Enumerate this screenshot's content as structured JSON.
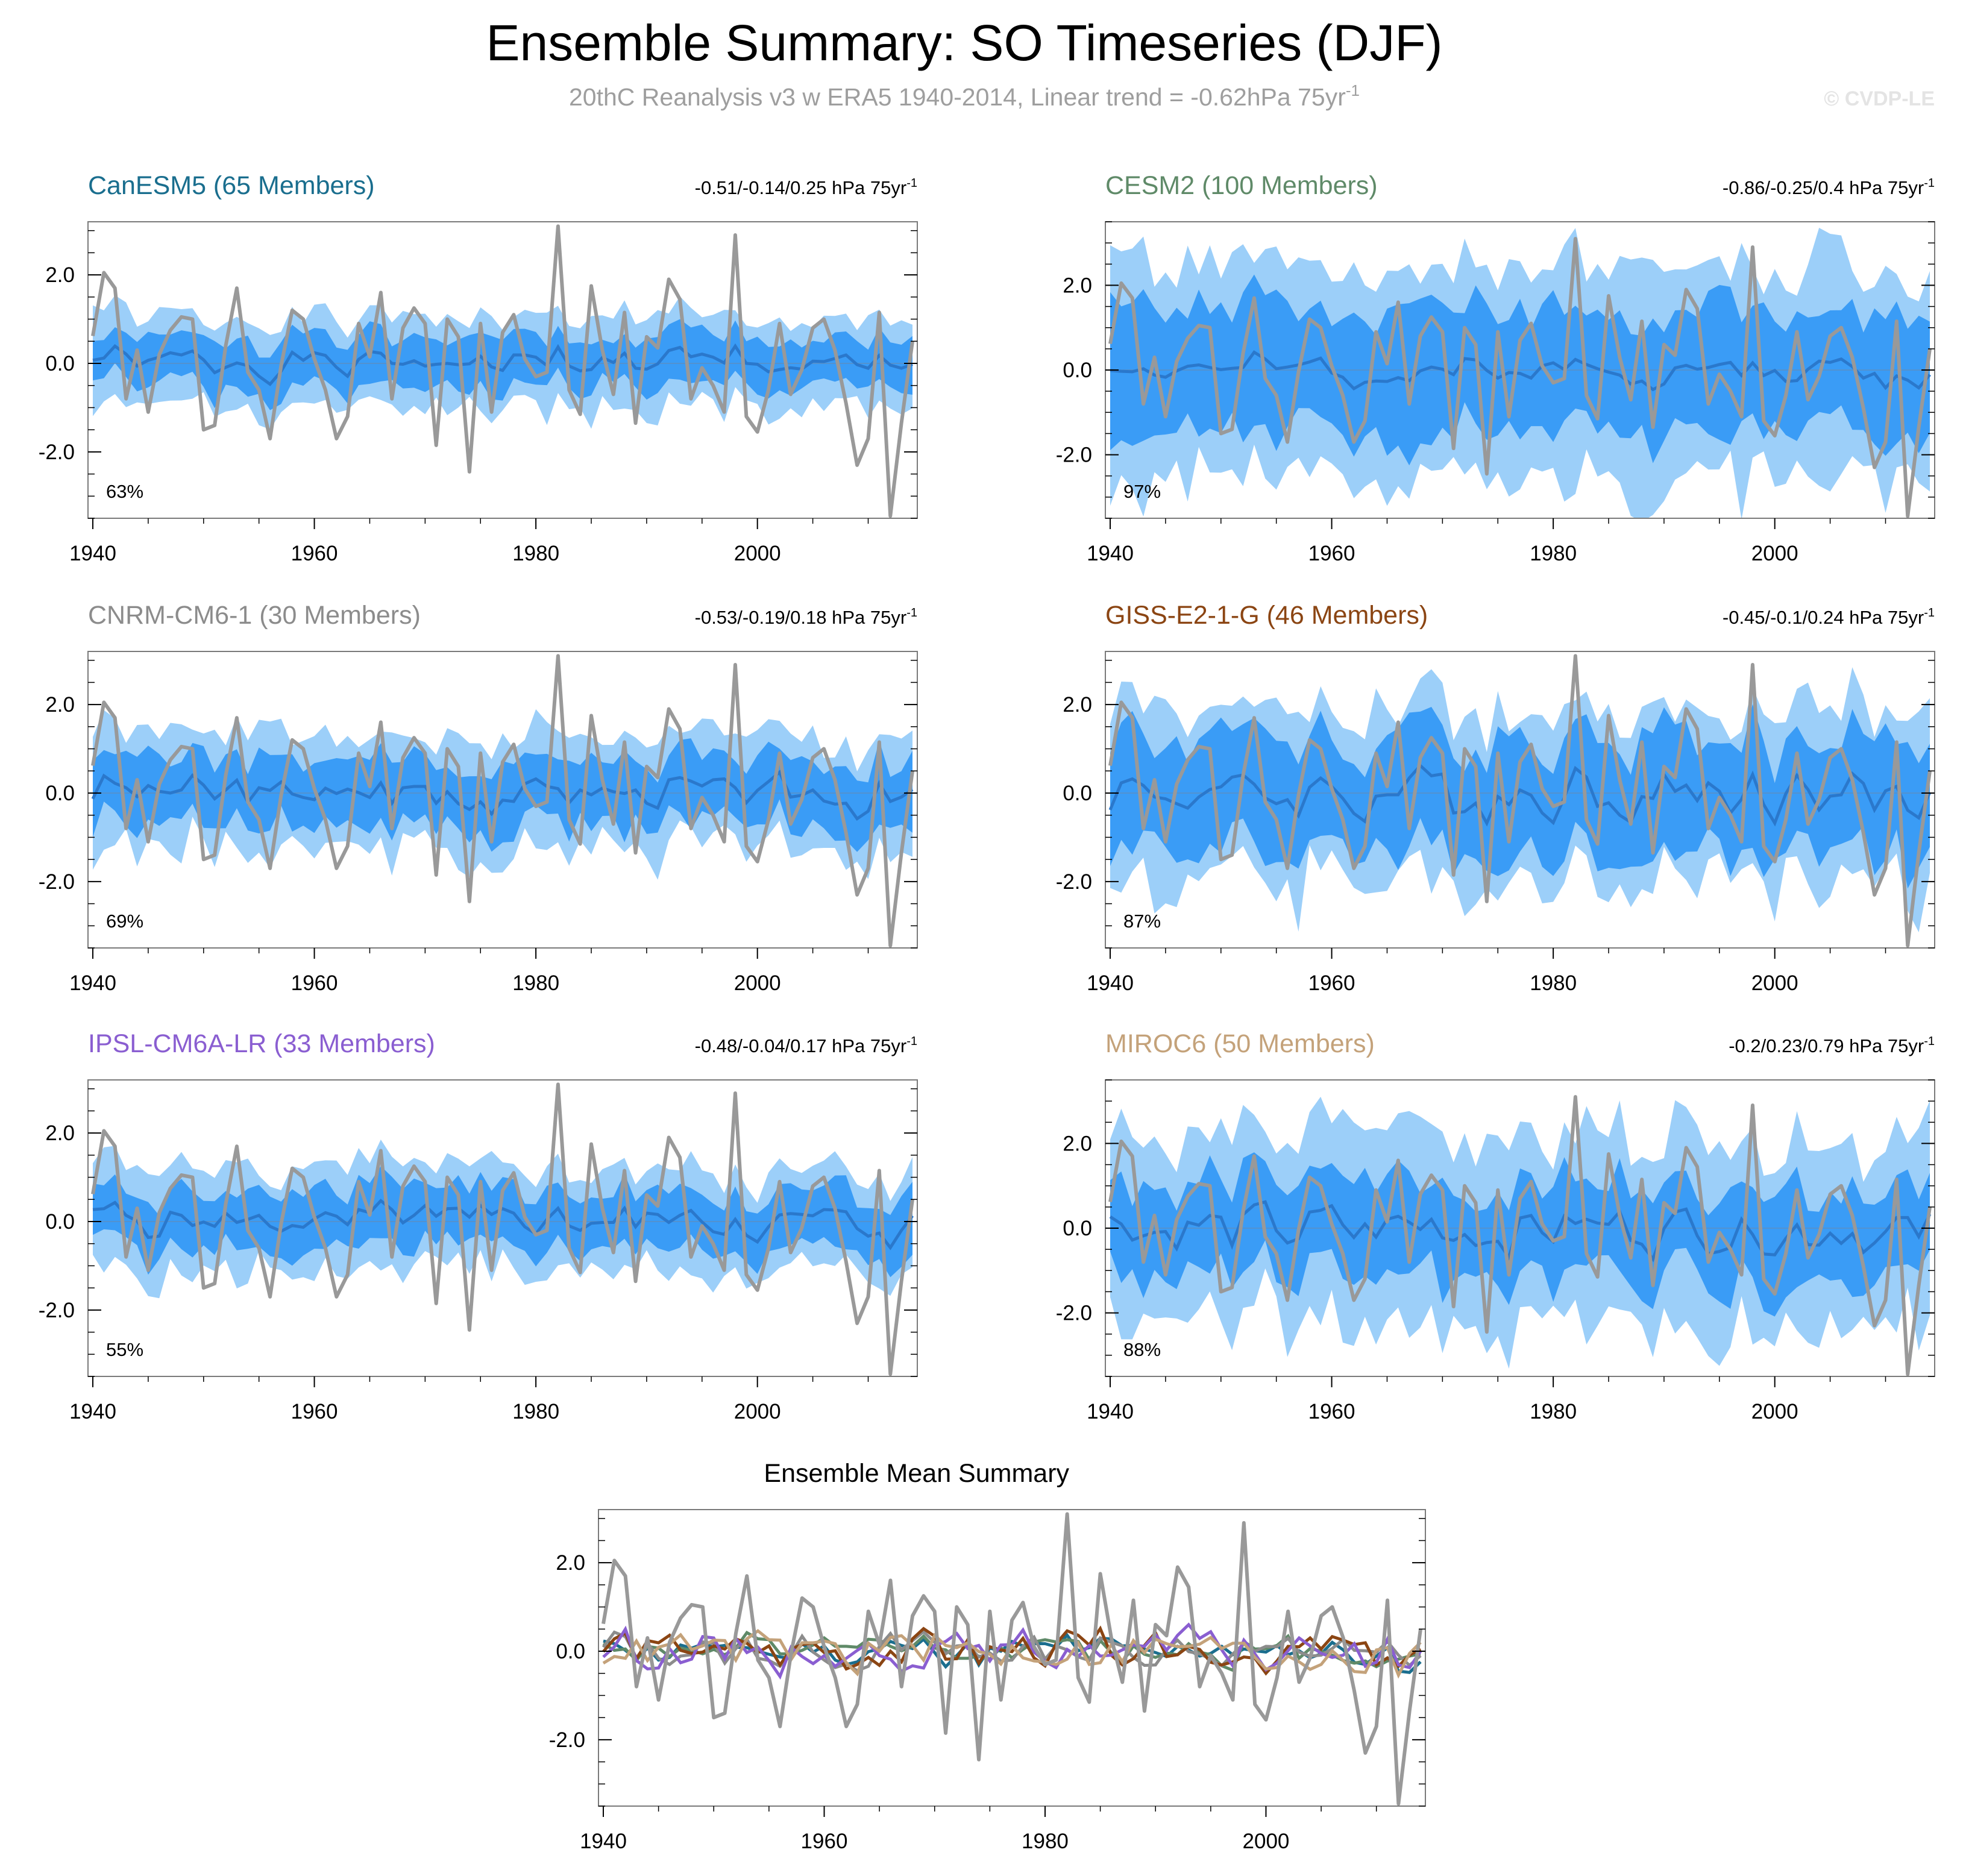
{
  "figure": {
    "title": "Ensemble Summary: SO Timeseries (DJF)",
    "subtitle_text": "20thC Reanalysis v3 w ERA5 1940-2014, Linear trend = -0.62hPa 75yr",
    "subtitle_sup": "-1",
    "watermark": "© CVDP-LE"
  },
  "colors": {
    "band_outer": "#9ccff9",
    "band_inner": "#3a9cf6",
    "ensemble_mean": "#2a78cc",
    "observations": "#999999",
    "axis": "#000000"
  },
  "chart_data": [
    {
      "type": "area",
      "title": "CanESM5 (65 Members)",
      "title_color": "#1a6e8e",
      "trend_text": "-0.51/-0.14/0.25 hPa 75yr",
      "trend_sup": "-1",
      "percent": "63%",
      "xlim": [
        1940,
        2014
      ],
      "ylim": [
        -3.5,
        3.2
      ],
      "x_ticks": [
        1940,
        1960,
        1980,
        2000
      ],
      "y_ticks": [
        -2.0,
        0.0,
        2.0
      ],
      "y_tick_labels": [
        "-2.0",
        "0.0",
        "2.0"
      ],
      "spread_outer": 1.0,
      "spread_inner": 0.55,
      "mean_amp": 0.14,
      "seed": 1
    },
    {
      "type": "area",
      "title": "CESM2 (100 Members)",
      "title_color": "#5f8a68",
      "trend_text": "-0.86/-0.25/0.4 hPa 75yr",
      "trend_sup": "-1",
      "percent": "97%",
      "xlim": [
        1940,
        2014
      ],
      "ylim": [
        -3.5,
        3.5
      ],
      "x_ticks": [
        1940,
        1960,
        1980,
        2000
      ],
      "y_ticks": [
        -2.0,
        0.0,
        2.0
      ],
      "y_tick_labels": [
        "-2.0",
        "0.0",
        "2.0"
      ],
      "spread_outer": 2.55,
      "spread_inner": 1.45,
      "mean_amp": 0.16,
      "seed": 2
    },
    {
      "type": "area",
      "title": "CNRM-CM6-1 (30 Members)",
      "title_color": "#8c8c8c",
      "trend_text": "-0.53/-0.19/0.18 hPa 75yr",
      "trend_sup": "-1",
      "percent": "69%",
      "xlim": [
        1940,
        2014
      ],
      "ylim": [
        -3.5,
        3.2
      ],
      "x_ticks": [
        1940,
        1960,
        1980,
        2000
      ],
      "y_ticks": [
        -2.0,
        0.0,
        2.0
      ],
      "y_tick_labels": [
        "-2.0",
        "0.0",
        "2.0"
      ],
      "spread_outer": 1.3,
      "spread_inner": 0.75,
      "mean_amp": 0.2,
      "seed": 3
    },
    {
      "type": "area",
      "title": "GISS-E2-1-G (46 Members)",
      "title_color": "#8b4513",
      "trend_text": "-0.45/-0.1/0.24 hPa 75yr",
      "trend_sup": "-1",
      "percent": "87%",
      "xlim": [
        1940,
        2014
      ],
      "ylim": [
        -3.5,
        3.2
      ],
      "x_ticks": [
        1940,
        1960,
        1980,
        2000
      ],
      "y_ticks": [
        -2.0,
        0.0,
        2.0
      ],
      "y_tick_labels": [
        "-2.0",
        "0.0",
        "2.0"
      ],
      "spread_outer": 1.95,
      "spread_inner": 1.25,
      "mean_amp": 0.3,
      "seed": 4
    },
    {
      "type": "area",
      "title": "IPSL-CM6A-LR (33 Members)",
      "title_color": "#8a5ed1",
      "trend_text": "-0.48/-0.04/0.17 hPa 75yr",
      "trend_sup": "-1",
      "percent": "55%",
      "xlim": [
        1940,
        2014
      ],
      "ylim": [
        -3.5,
        3.2
      ],
      "x_ticks": [
        1940,
        1960,
        1980,
        2000
      ],
      "y_ticks": [
        -2.0,
        0.0,
        2.0
      ],
      "y_tick_labels": [
        "-2.0",
        "0.0",
        "2.0"
      ],
      "spread_outer": 1.15,
      "spread_inner": 0.65,
      "mean_amp": 0.18,
      "seed": 5
    },
    {
      "type": "area",
      "title": "MIROC6 (50 Members)",
      "title_color": "#c4a27a",
      "trend_text": "-0.2/0.23/0.79 hPa 75yr",
      "trend_sup": "-1",
      "percent": "88%",
      "xlim": [
        1940,
        2014
      ],
      "ylim": [
        -3.5,
        3.5
      ],
      "x_ticks": [
        1940,
        1960,
        1980,
        2000
      ],
      "y_ticks": [
        -2.0,
        0.0,
        2.0
      ],
      "y_tick_labels": [
        "-2.0",
        "0.0",
        "2.0"
      ],
      "spread_outer": 2.2,
      "spread_inner": 1.1,
      "mean_amp": 0.3,
      "seed": 6
    },
    {
      "type": "line",
      "title": "Ensemble Mean Summary",
      "title_color": "#000000",
      "xlim": [
        1940,
        2014
      ],
      "ylim": [
        -3.5,
        3.2
      ],
      "x_ticks": [
        1940,
        1960,
        1980,
        2000
      ],
      "y_ticks": [
        -2.0,
        0.0,
        2.0
      ],
      "y_tick_labels": [
        "-2.0",
        "0.0",
        "2.0"
      ],
      "series_colors": [
        "#1a6e8e",
        "#5f8a68",
        "#8c8c8c",
        "#8b4513",
        "#8a5ed1",
        "#c4a27a"
      ]
    }
  ],
  "observations": {
    "x_start": 1940,
    "values": [
      0.62,
      2.05,
      1.7,
      -0.8,
      0.3,
      -1.1,
      0.2,
      0.75,
      1.05,
      1.0,
      -1.5,
      -1.4,
      0.4,
      1.7,
      -0.2,
      -0.6,
      -1.7,
      -0.05,
      1.2,
      1.0,
      0.1,
      -0.6,
      -1.7,
      -1.2,
      0.9,
      0.15,
      1.6,
      -0.8,
      0.8,
      1.25,
      0.9,
      -1.85,
      1.0,
      0.6,
      -2.45,
      0.9,
      -1.1,
      0.7,
      1.1,
      0.1,
      -0.3,
      -0.2,
      3.1,
      -0.6,
      -1.15,
      1.75,
      0.3,
      -0.7,
      1.15,
      -1.35,
      0.6,
      0.35,
      1.9,
      1.45,
      -0.8,
      -0.1,
      -0.5,
      -1.1,
      2.9,
      -1.2,
      -1.55,
      -0.6,
      0.9,
      -0.7,
      -0.15,
      0.8,
      1.0,
      0.3,
      -0.9,
      -2.3,
      -1.7,
      1.15,
      -3.45,
      -1.35,
      0.5
    ]
  }
}
